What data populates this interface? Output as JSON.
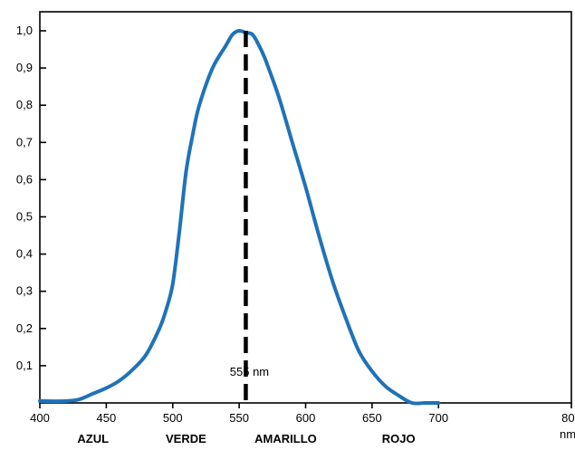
{
  "chart_data": {
    "type": "line",
    "title": "",
    "xlabel": "",
    "ylabel": "",
    "x_unit": "nm",
    "xlim": [
      400,
      800
    ],
    "ylim": [
      0,
      1.0
    ],
    "grid": false,
    "line_color": "#1f72b8",
    "x_ticks": [
      {
        "value": 400,
        "label": "400"
      },
      {
        "value": 450,
        "label": "450"
      },
      {
        "value": 500,
        "label": "500"
      },
      {
        "value": 550,
        "label": "550"
      },
      {
        "value": 600,
        "label": "600"
      },
      {
        "value": 650,
        "label": "650"
      },
      {
        "value": 700,
        "label": "700"
      },
      {
        "value": 800,
        "label": "800"
      }
    ],
    "y_ticks": [
      {
        "value": 0.1,
        "label": "0,1"
      },
      {
        "value": 0.2,
        "label": "0,2"
      },
      {
        "value": 0.3,
        "label": "0,3"
      },
      {
        "value": 0.4,
        "label": "0,4"
      },
      {
        "value": 0.5,
        "label": "0,5"
      },
      {
        "value": 0.6,
        "label": "0,6"
      },
      {
        "value": 0.7,
        "label": "0,7"
      },
      {
        "value": 0.8,
        "label": "0,8"
      },
      {
        "value": 0.9,
        "label": "0,9"
      },
      {
        "value": 1.0,
        "label": "1,0"
      }
    ],
    "color_labels": [
      {
        "x": 440,
        "label": "AZUL"
      },
      {
        "x": 510,
        "label": "VERDE"
      },
      {
        "x": 585,
        "label": "AMARILLO"
      },
      {
        "x": 670,
        "label": "ROJO"
      }
    ],
    "reference_line": {
      "x": 555,
      "label": "555 nm"
    },
    "series": [
      {
        "x": [
          400,
          420,
          430,
          440,
          450,
          460,
          470,
          480,
          490,
          495,
          500,
          505,
          510,
          515,
          520,
          530,
          540,
          545,
          550,
          555,
          560,
          565,
          570,
          580,
          590,
          600,
          610,
          620,
          630,
          640,
          650,
          660,
          670,
          680,
          690,
          700
        ],
        "y": [
          0.005,
          0.005,
          0.01,
          0.025,
          0.04,
          0.06,
          0.09,
          0.13,
          0.2,
          0.25,
          0.32,
          0.46,
          0.62,
          0.72,
          0.8,
          0.9,
          0.96,
          0.99,
          1.0,
          0.995,
          0.99,
          0.96,
          0.92,
          0.82,
          0.7,
          0.58,
          0.45,
          0.33,
          0.23,
          0.14,
          0.085,
          0.045,
          0.02,
          0.0,
          0.0,
          0.0
        ]
      }
    ]
  }
}
